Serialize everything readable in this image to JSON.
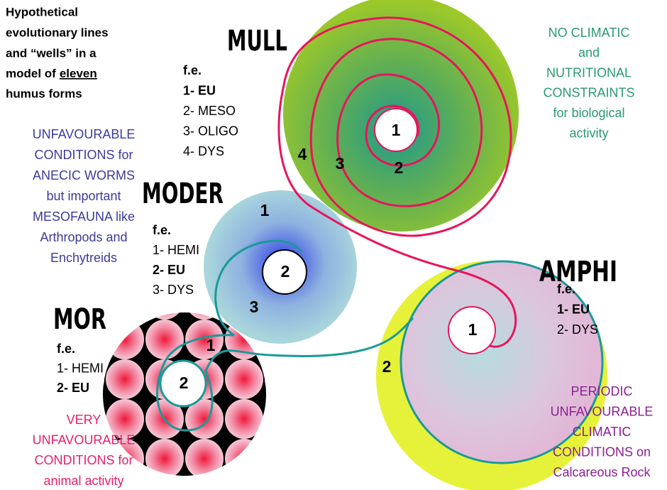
{
  "title": {
    "lines": [
      "Hypothetical",
      "evolutionary lines",
      "and “wells” in a",
      [
        "model of",
        "eleven"
      ],
      "humus forms"
    ]
  },
  "forms": [
    {
      "name": "MULL",
      "fe": "f.e.",
      "items": [
        {
          "text": "1- EU",
          "bold": true
        },
        {
          "text": "2- MESO"
        },
        {
          "text": "3- OLIGO"
        },
        {
          "text": "4- DYS"
        }
      ],
      "note": {
        "color": "#2a9a72",
        "lines": [
          "NO CLIMATIC",
          "and",
          "NUTRITIONAL",
          "CONSTRAINTS",
          "for biological",
          "activity"
        ]
      },
      "wells": [
        "1",
        "2",
        "3",
        "4"
      ]
    },
    {
      "name": "MODER",
      "fe": "f.e.",
      "items": [
        {
          "text": "1- HEMI"
        },
        {
          "text": "2- EU",
          "bold": true
        },
        {
          "text": "3- DYS"
        }
      ],
      "note": {
        "color": "#3b3a9c",
        "lines": [
          "UNFAVOURABLE",
          "CONDITIONS for",
          "ANECIC WORMS",
          "but important",
          "MESOFAUNA like",
          "Arthropods and",
          "Enchytreids"
        ]
      },
      "wells": [
        "1",
        "2",
        "3"
      ]
    },
    {
      "name": "MOR",
      "fe": "f.e.",
      "items": [
        {
          "text": "1- HEMI"
        },
        {
          "text": "2- EU",
          "bold": true
        }
      ],
      "note": {
        "color": "#e8206c",
        "lines": [
          "VERY",
          "UNFAVOURABLE",
          "CONDITIONS for",
          "animal activity"
        ]
      },
      "wells": [
        "1",
        "2"
      ]
    },
    {
      "name": "AMPHI",
      "fe": "f.e.",
      "items": [
        {
          "text": "1- EU",
          "bold": true
        },
        {
          "text": "2- DYS"
        }
      ],
      "note": {
        "color": "#8a1f92",
        "lines": [
          "PERIODIC",
          "UNFAVOURABLE",
          "CLIMATIC",
          "CONDITIONS on",
          "Calcareous Rock"
        ]
      },
      "wells": [
        "1",
        "2"
      ]
    }
  ]
}
